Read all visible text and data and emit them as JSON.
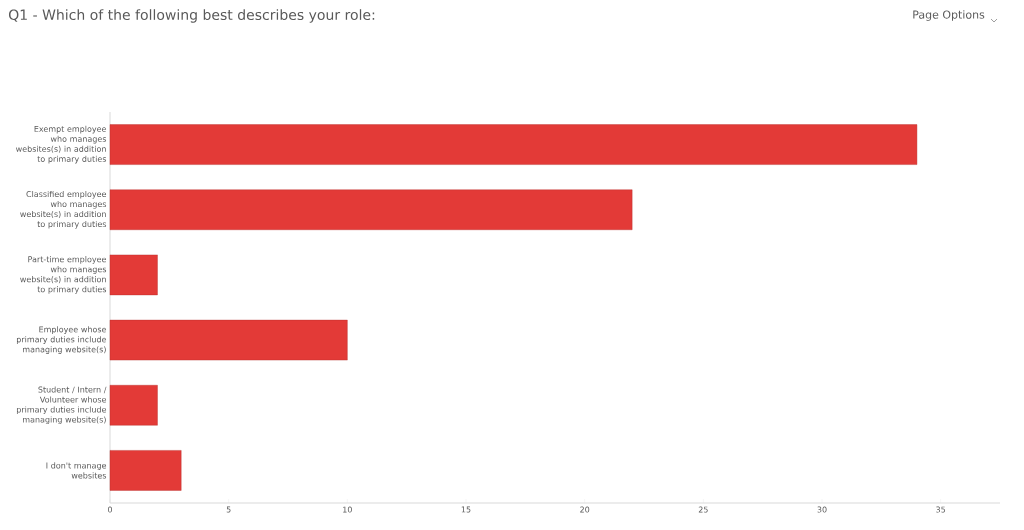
{
  "chart_data": {
    "type": "bar",
    "orientation": "horizontal",
    "title": "Q1 - Which of the following best describes your role:",
    "annotations": [
      "Page Options"
    ],
    "categories": [
      "Exempt employee who manages websites(s) in addition to primary duties",
      "Classified employee who manages website(s) in addition to primary duties",
      "Part-time employee who manages website(s) in addition to primary duties",
      "Employee whose primary duties include managing website(s)",
      "Student / Intern / Volunteer whose primary duties include managing website(s)",
      "I don't manage websites"
    ],
    "values": [
      34,
      22,
      2,
      10,
      2,
      3
    ],
    "color": "#e33a37",
    "xlim": [
      0,
      37.5
    ],
    "xticks": [
      0,
      5,
      10,
      15,
      20,
      25,
      30,
      35
    ]
  }
}
